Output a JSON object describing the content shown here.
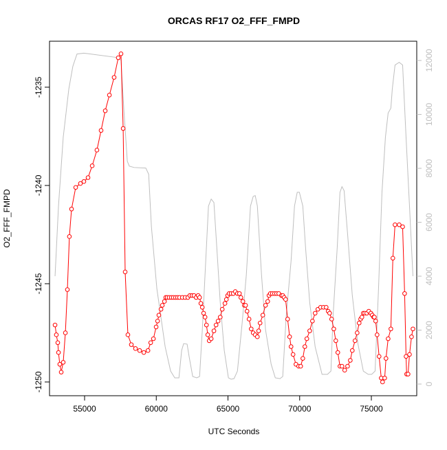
{
  "chart_data": {
    "type": "line",
    "title": "ORCAS RF17 O2_FFF_FMPD",
    "xlabel": "UTC Seconds",
    "ylabel": "O2_FFF_FMPD",
    "xlim": [
      52554,
      78165
    ],
    "ylim": [
      -1250.7,
      -1232.66
    ],
    "y2lim": [
      -433,
      12713
    ],
    "xticks": [
      55000,
      60000,
      65000,
      70000,
      75000
    ],
    "yticks": [
      -1250,
      -1245,
      -1240,
      -1235
    ],
    "y2ticks": [
      0,
      2000,
      4000,
      6000,
      8000,
      10000,
      12000
    ],
    "series": [
      {
        "color": "#ff0000",
        "markers": true,
        "x": [
          52940,
          53030,
          53130,
          53180,
          53270,
          53370,
          53510,
          53660,
          53800,
          53940,
          54090,
          54380,
          54710,
          54950,
          55240,
          55530,
          55860,
          56150,
          56440,
          56730,
          57060,
          57350,
          57540,
          57690,
          57830,
          58020,
          58260,
          58550,
          58840,
          59130,
          59420,
          59610,
          59800,
          59990,
          60090,
          60180,
          60330,
          60420,
          60570,
          60660,
          60760,
          60900,
          61050,
          61190,
          61340,
          61480,
          61620,
          61820,
          62010,
          62200,
          62340,
          62490,
          62630,
          62780,
          62920,
          63020,
          63110,
          63210,
          63300,
          63400,
          63500,
          63590,
          63690,
          63830,
          64020,
          64170,
          64310,
          64460,
          64600,
          64790,
          64890,
          64980,
          65080,
          65220,
          65370,
          65510,
          65660,
          65800,
          65900,
          66040,
          66140,
          66230,
          66330,
          66470,
          66620,
          66760,
          66900,
          67050,
          67140,
          67240,
          67430,
          67620,
          67770,
          67860,
          67960,
          68100,
          68250,
          68390,
          68540,
          68730,
          68820,
          68920,
          69020,
          69160,
          69300,
          69400,
          69540,
          69740,
          69930,
          70070,
          70220,
          70360,
          70500,
          70700,
          70890,
          71080,
          71270,
          71460,
          71660,
          71850,
          71990,
          72090,
          72230,
          72380,
          72520,
          72660,
          72810,
          72950,
          73140,
          73340,
          73530,
          73670,
          73860,
          74010,
          74150,
          74250,
          74340,
          74440,
          74540,
          74680,
          74820,
          74970,
          75060,
          75160,
          75210,
          75300,
          75400,
          75540,
          75690,
          75780,
          75930,
          76020,
          76170,
          76360,
          76500,
          76650,
          76940,
          77180,
          77320,
          77420,
          77460,
          77560,
          77660,
          77800,
          77900
        ],
        "values": [
          -1247.1,
          -1247.6,
          -1248.0,
          -1248.5,
          -1249.1,
          -1249.5,
          -1249.0,
          -1247.5,
          -1245.3,
          -1242.6,
          -1241.2,
          -1240.1,
          -1239.9,
          -1239.8,
          -1239.6,
          -1239.0,
          -1238.2,
          -1237.2,
          -1236.2,
          -1235.4,
          -1234.5,
          -1233.5,
          -1233.3,
          -1237.1,
          -1244.4,
          -1247.6,
          -1248.1,
          -1248.3,
          -1248.4,
          -1248.5,
          -1248.4,
          -1248.0,
          -1247.8,
          -1247.2,
          -1246.9,
          -1246.6,
          -1246.3,
          -1246.1,
          -1245.9,
          -1245.7,
          -1245.7,
          -1245.7,
          -1245.7,
          -1245.7,
          -1245.7,
          -1245.7,
          -1245.7,
          -1245.7,
          -1245.7,
          -1245.7,
          -1245.6,
          -1245.6,
          -1245.6,
          -1245.7,
          -1245.6,
          -1245.7,
          -1246.0,
          -1246.2,
          -1246.5,
          -1246.7,
          -1247.1,
          -1247.6,
          -1247.9,
          -1247.8,
          -1247.4,
          -1247.1,
          -1246.9,
          -1246.7,
          -1246.3,
          -1246.0,
          -1245.8,
          -1245.6,
          -1245.5,
          -1245.5,
          -1245.5,
          -1245.4,
          -1245.5,
          -1245.5,
          -1245.7,
          -1245.9,
          -1246.1,
          -1246.1,
          -1246.4,
          -1246.8,
          -1247.3,
          -1247.5,
          -1247.6,
          -1247.7,
          -1247.4,
          -1247.0,
          -1246.6,
          -1246.1,
          -1245.9,
          -1245.6,
          -1245.5,
          -1245.5,
          -1245.5,
          -1245.5,
          -1245.5,
          -1245.6,
          -1245.6,
          -1245.7,
          -1245.8,
          -1246.8,
          -1247.7,
          -1248.2,
          -1248.6,
          -1249.1,
          -1249.2,
          -1249.2,
          -1248.8,
          -1248.2,
          -1247.8,
          -1247.4,
          -1246.9,
          -1246.5,
          -1246.3,
          -1246.2,
          -1246.2,
          -1246.2,
          -1246.4,
          -1246.5,
          -1246.8,
          -1247.3,
          -1247.9,
          -1248.5,
          -1249.2,
          -1249.2,
          -1249.4,
          -1249.2,
          -1248.9,
          -1248.4,
          -1247.9,
          -1247.5,
          -1247.0,
          -1246.8,
          -1246.7,
          -1246.5,
          -1246.5,
          -1246.5,
          -1246.4,
          -1246.5,
          -1246.6,
          -1246.7,
          -1246.7,
          -1246.9,
          -1247.6,
          -1248.7,
          -1249.8,
          -1250.0,
          -1249.8,
          -1248.8,
          -1247.8,
          -1247.3,
          -1243.7,
          -1242.0,
          -1242.0,
          -1242.1,
          -1245.5,
          -1248.7,
          -1249.6,
          -1249.6,
          -1248.6,
          -1247.7,
          -1247.3
        ]
      },
      {
        "color": "#bebebe",
        "axis": "y2",
        "markers": false,
        "x": [
          52940,
          53180,
          53510,
          53900,
          54180,
          54470,
          54950,
          57260,
          57540,
          57740,
          57980,
          58120,
          58460,
          59270,
          59470,
          59660,
          60040,
          60620,
          61000,
          61290,
          61580,
          61770,
          61910,
          62150,
          62300,
          62540,
          62820,
          63020,
          63210,
          63400,
          63640,
          63830,
          64020,
          64220,
          64460,
          64740,
          65030,
          65220,
          65420,
          65660,
          65990,
          66280,
          66570,
          66760,
          66900,
          67050,
          67340,
          67620,
          68010,
          68300,
          68630,
          68820,
          69060,
          69400,
          69640,
          69830,
          69980,
          70220,
          70410,
          70700,
          71080,
          71560,
          71940,
          72180,
          72330,
          72620,
          72810,
          72950,
          73100,
          73340,
          73670,
          74060,
          74440,
          74780,
          75020,
          75260,
          75500,
          75740,
          75980,
          76170,
          76360,
          76460,
          76650,
          76940,
          77180,
          77420,
          77660,
          77900
        ],
        "values": [
          4000,
          6600,
          9150,
          10940,
          11780,
          12240,
          12270,
          12110,
          12010,
          10170,
          8260,
          8080,
          8030,
          8010,
          7780,
          5840,
          3540,
          1380,
          480,
          230,
          230,
          1250,
          1500,
          1480,
          990,
          280,
          230,
          280,
          2010,
          4050,
          6600,
          6860,
          6730,
          5070,
          3030,
          1250,
          230,
          180,
          200,
          480,
          2270,
          4050,
          6600,
          6960,
          6990,
          6600,
          4050,
          2010,
          740,
          230,
          200,
          280,
          2520,
          4560,
          6600,
          7110,
          7110,
          6600,
          5070,
          3030,
          1380,
          360,
          360,
          480,
          2520,
          5070,
          7110,
          7320,
          7170,
          5580,
          3290,
          1500,
          480,
          360,
          360,
          480,
          3540,
          7110,
          9150,
          10050,
          10230,
          10940,
          11830,
          11930,
          11830,
          9150,
          6600,
          4000
        ]
      }
    ]
  }
}
